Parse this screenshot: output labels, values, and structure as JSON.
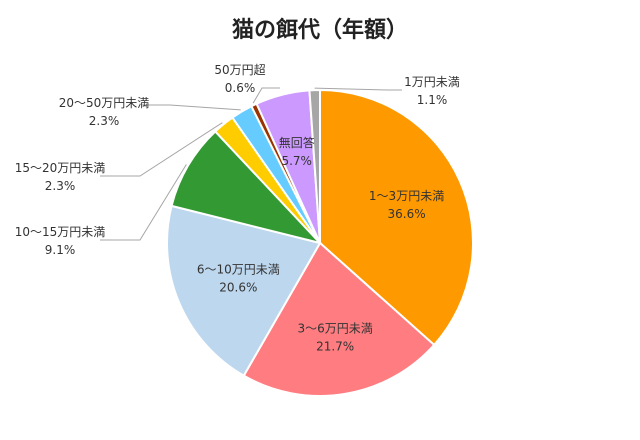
{
  "chart_data": {
    "type": "pie",
    "title": "猫の餌代（年額）",
    "start": "top",
    "direction": "clockwise",
    "slices": [
      {
        "label": "1～3万円未満",
        "value": 36.6,
        "value_text": "36.6%",
        "color": "#FF9900"
      },
      {
        "label": "3～6万円未満",
        "value": 21.7,
        "value_text": "21.7%",
        "color": "#FF7C80"
      },
      {
        "label": "6～10万円未満",
        "value": 20.6,
        "value_text": "20.6%",
        "color": "#BDD7EE"
      },
      {
        "label": "10～15万円未満",
        "value": 9.1,
        "value_text": "9.1%",
        "color": "#339933"
      },
      {
        "label": "15～20万円未満",
        "value": 2.3,
        "value_text": "2.3%",
        "color": "#FFCC00"
      },
      {
        "label": "20～50万円未満",
        "value": 2.3,
        "value_text": "2.3%",
        "color": "#66CCFF"
      },
      {
        "label": "50万円超",
        "value": 0.6,
        "value_text": "0.6%",
        "color": "#993300"
      },
      {
        "label": "無回答",
        "value": 5.7,
        "value_text": "5.7%",
        "color": "#CC99FF"
      },
      {
        "label": "1万円未満",
        "value": 1.1,
        "value_text": "1.1%",
        "color": "#A6A6A6"
      }
    ]
  }
}
